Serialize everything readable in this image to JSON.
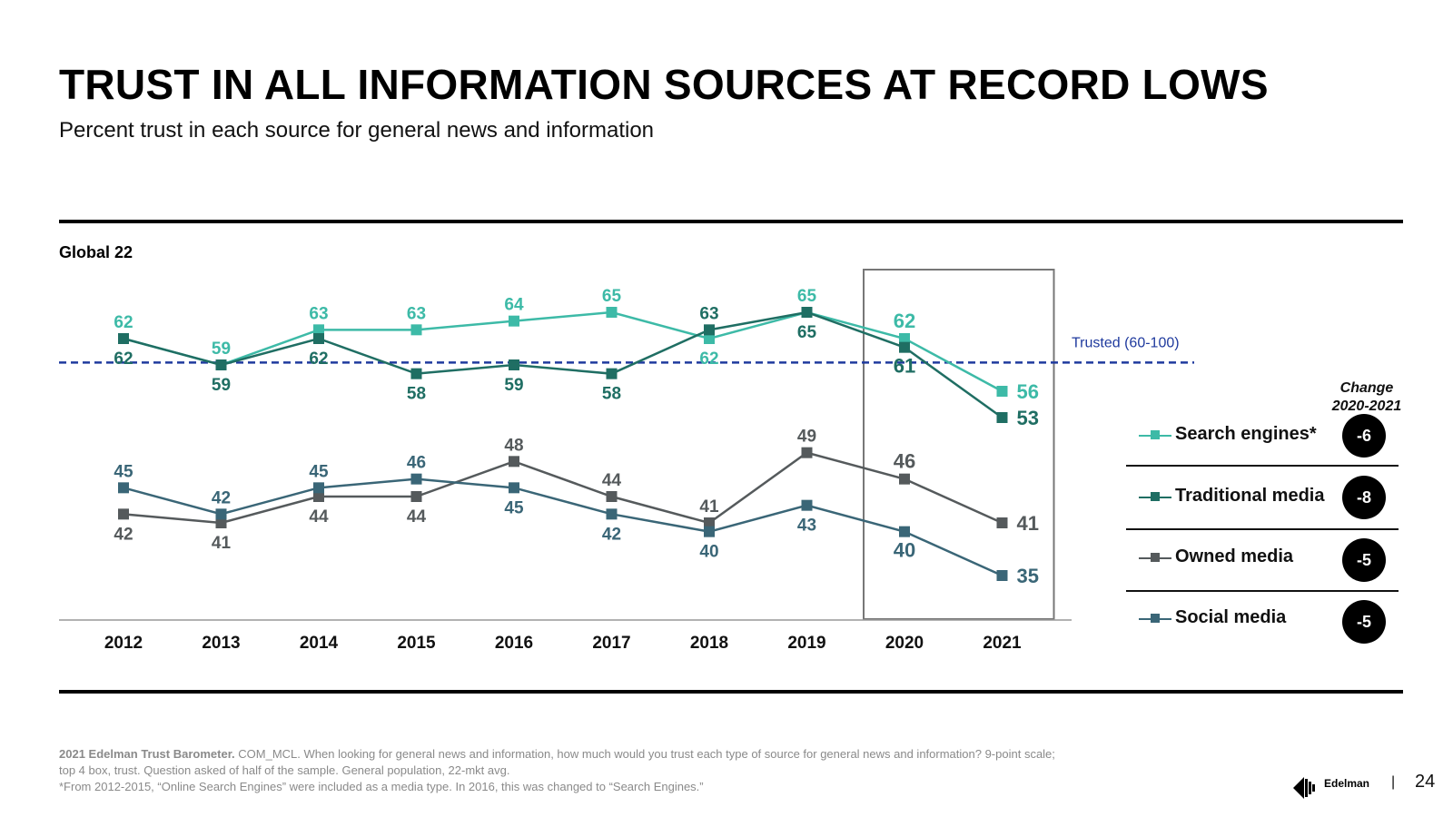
{
  "header": {
    "title": "TRUST IN ALL INFORMATION SOURCES AT RECORD LOWS",
    "subtitle": "Percent trust in each source for general news and information",
    "region": "Global 22"
  },
  "chart_data": {
    "type": "line",
    "x": [
      "2012",
      "2013",
      "2014",
      "2015",
      "2016",
      "2017",
      "2018",
      "2019",
      "2020",
      "2021"
    ],
    "ylim": [
      30,
      70
    ],
    "reference_line": {
      "value": 60,
      "label": "Trusted (60-100)",
      "color": "#1f3a9e"
    },
    "highlight_range": [
      "2020",
      "2021"
    ],
    "series": [
      {
        "name": "Search engines*",
        "color": "#3dbaa7",
        "values": [
          62,
          59,
          63,
          63,
          64,
          65,
          62,
          65,
          62,
          56
        ]
      },
      {
        "name": "Traditional media",
        "color": "#1f6e63",
        "values": [
          62,
          59,
          62,
          58,
          59,
          58,
          63,
          65,
          61,
          53
        ]
      },
      {
        "name": "Owned media",
        "color": "#555a5c",
        "values": [
          42,
          41,
          44,
          44,
          48,
          44,
          41,
          49,
          46,
          41
        ]
      },
      {
        "name": "Social media",
        "color": "#3a6677",
        "values": [
          45,
          42,
          45,
          46,
          45,
          42,
          40,
          43,
          40,
          35
        ]
      }
    ],
    "legend_placement": "right",
    "grid": false
  },
  "change": {
    "title_line1": "Change",
    "title_line2": "2020-2021",
    "values": [
      "-6",
      "-8",
      "-5",
      "-5"
    ]
  },
  "footnote": {
    "source_bold": "2021 Edelman Trust Barometer.",
    "line1": " COM_MCL. When looking for general news and information, how much would you trust each type of source for general news and information? 9-point scale;",
    "line2": "top 4 box, trust. Question asked of half of the sample. General population, 22-mkt avg.",
    "line3": "*From 2012-2015, “Online Search Engines” were included as a media type. In 2016, this was changed to “Search Engines.”"
  },
  "brand": {
    "logo_text": "Edelman",
    "separator": "|",
    "page_number": "24"
  }
}
